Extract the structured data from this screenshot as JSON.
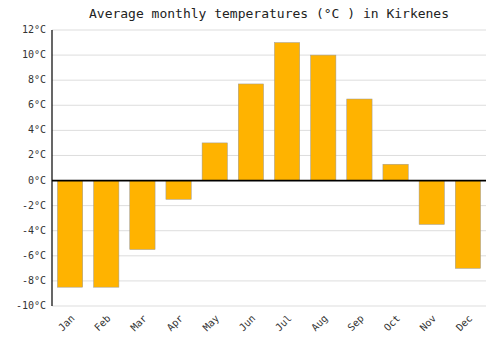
{
  "chart_data": {
    "type": "bar",
    "title": "Average monthly temperatures (°C ) in Kirkenes",
    "categories": [
      "Jan",
      "Feb",
      "Mar",
      "Apr",
      "May",
      "Jun",
      "Jul",
      "Aug",
      "Sep",
      "Oct",
      "Nov",
      "Dec"
    ],
    "values": [
      -8.5,
      -8.5,
      -5.5,
      -1.5,
      3.0,
      7.7,
      11.0,
      10.0,
      6.5,
      1.3,
      -3.5,
      -7.0
    ],
    "color": "#FFB300",
    "ylim": [
      -10,
      12
    ],
    "yticks": [
      {
        "value": -10,
        "label": "-10°C"
      },
      {
        "value": -8,
        "label": "-8°C"
      },
      {
        "value": -6,
        "label": "-6°C"
      },
      {
        "value": -4,
        "label": "-4°C"
      },
      {
        "value": -2,
        "label": "-2°C"
      },
      {
        "value": 0,
        "label": "0°C"
      },
      {
        "value": 2,
        "label": "2°C"
      },
      {
        "value": 4,
        "label": "4°C"
      },
      {
        "value": 6,
        "label": "6°C"
      },
      {
        "value": 8,
        "label": "8°C"
      },
      {
        "value": 10,
        "label": "10°C"
      },
      {
        "value": 12,
        "label": "12°C"
      }
    ],
    "grid": true
  }
}
